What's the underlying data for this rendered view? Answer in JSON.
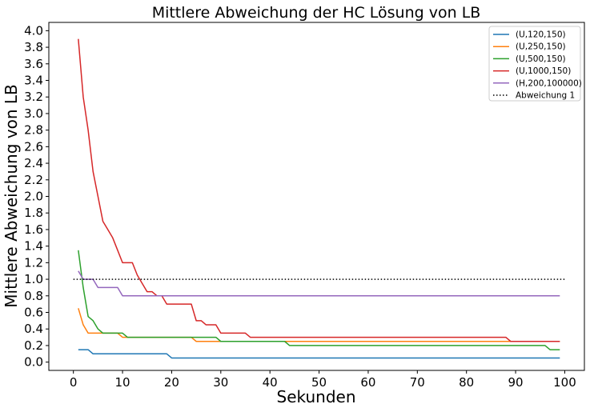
{
  "chart_data": {
    "type": "line",
    "title": "Mittlere Abweichung der HC Lösung von LB",
    "xlabel": "Sekunden",
    "ylabel": "Mittlere Abweichung von LB",
    "xlim": [
      -5,
      104
    ],
    "ylim": [
      -0.1,
      4.1
    ],
    "xticks": [
      0,
      10,
      20,
      30,
      40,
      50,
      60,
      70,
      80,
      90,
      100
    ],
    "yticks": [
      0.0,
      0.2,
      0.4,
      0.6,
      0.8,
      1.0,
      1.2,
      1.4,
      1.6,
      1.8,
      2.0,
      2.2,
      2.4,
      2.6,
      2.8,
      3.0,
      3.2,
      3.4,
      3.6,
      3.8,
      4.0
    ],
    "legend_position": "top-right",
    "grid": false,
    "series": [
      {
        "name": "(U,120,150)",
        "color": "#1f77b4",
        "style": "solid",
        "points": [
          [
            1,
            0.15
          ],
          [
            3,
            0.15
          ],
          [
            4,
            0.1
          ],
          [
            19,
            0.1
          ],
          [
            20,
            0.05
          ],
          [
            99,
            0.05
          ]
        ]
      },
      {
        "name": "(U,250,150)",
        "color": "#ff7f0e",
        "style": "solid",
        "points": [
          [
            1,
            0.65
          ],
          [
            2,
            0.45
          ],
          [
            3,
            0.35
          ],
          [
            9,
            0.35
          ],
          [
            10,
            0.3
          ],
          [
            24,
            0.3
          ],
          [
            25,
            0.25
          ],
          [
            99,
            0.25
          ]
        ]
      },
      {
        "name": "(U,500,150)",
        "color": "#2ca02c",
        "style": "solid",
        "points": [
          [
            1,
            1.35
          ],
          [
            2,
            0.9
          ],
          [
            3,
            0.55
          ],
          [
            4,
            0.5
          ],
          [
            5,
            0.4
          ],
          [
            6,
            0.35
          ],
          [
            10,
            0.35
          ],
          [
            11,
            0.3
          ],
          [
            29,
            0.3
          ],
          [
            30,
            0.25
          ],
          [
            43,
            0.25
          ],
          [
            44,
            0.2
          ],
          [
            96,
            0.2
          ],
          [
            97,
            0.15
          ],
          [
            99,
            0.15
          ]
        ]
      },
      {
        "name": "(U,1000,150)",
        "color": "#d62728",
        "style": "solid",
        "points": [
          [
            1,
            3.9
          ],
          [
            2,
            3.2
          ],
          [
            3,
            2.8
          ],
          [
            4,
            2.3
          ],
          [
            5,
            2.0
          ],
          [
            6,
            1.7
          ],
          [
            7,
            1.6
          ],
          [
            8,
            1.5
          ],
          [
            9,
            1.35
          ],
          [
            10,
            1.2
          ],
          [
            12,
            1.2
          ],
          [
            13,
            1.05
          ],
          [
            14,
            0.95
          ],
          [
            15,
            0.85
          ],
          [
            16,
            0.85
          ],
          [
            17,
            0.8
          ],
          [
            18,
            0.8
          ],
          [
            19,
            0.7
          ],
          [
            24,
            0.7
          ],
          [
            25,
            0.5
          ],
          [
            26,
            0.5
          ],
          [
            27,
            0.45
          ],
          [
            29,
            0.45
          ],
          [
            30,
            0.35
          ],
          [
            35,
            0.35
          ],
          [
            36,
            0.3
          ],
          [
            88,
            0.3
          ],
          [
            89,
            0.25
          ],
          [
            99,
            0.25
          ]
        ]
      },
      {
        "name": "(H,200,100000)",
        "color": "#9467bd",
        "style": "solid",
        "points": [
          [
            1,
            1.1
          ],
          [
            2,
            1.0
          ],
          [
            4,
            1.0
          ],
          [
            5,
            0.9
          ],
          [
            9,
            0.9
          ],
          [
            10,
            0.8
          ],
          [
            99,
            0.8
          ]
        ]
      },
      {
        "name": "Abweichung 1",
        "color": "#000000",
        "style": "dotted",
        "points": [
          [
            0,
            1.0
          ],
          [
            100,
            1.0
          ]
        ]
      }
    ]
  }
}
